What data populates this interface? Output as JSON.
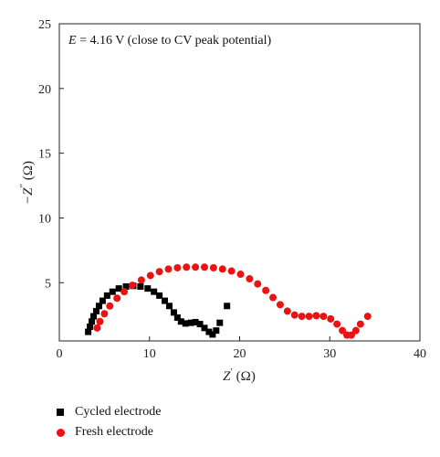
{
  "chart_data": {
    "type": "scatter",
    "annotation": {
      "italic": "E",
      "rest": " = 4.16 V (close to CV peak potential)"
    },
    "xlabel": {
      "main": "Z",
      "sup": "′",
      "unit": " (Ω)"
    },
    "ylabel": {
      "main": "−Z",
      "sup": "″",
      "unit": " (Ω)"
    },
    "xlim": [
      0,
      40
    ],
    "ylim": [
      0.5,
      25
    ],
    "xticks": [
      0,
      10,
      20,
      30,
      40
    ],
    "yticks": [
      5,
      10,
      15,
      20,
      25
    ],
    "grid": false,
    "legend_position": "bottom-left",
    "series": [
      {
        "name": "Cycled electrode",
        "marker": "square",
        "color": "#000000",
        "points": [
          [
            3.2,
            1.2
          ],
          [
            3.4,
            1.6
          ],
          [
            3.6,
            2.0
          ],
          [
            3.8,
            2.4
          ],
          [
            4.1,
            2.8
          ],
          [
            4.4,
            3.2
          ],
          [
            4.8,
            3.6
          ],
          [
            5.3,
            4.0
          ],
          [
            5.9,
            4.3
          ],
          [
            6.6,
            4.55
          ],
          [
            7.4,
            4.7
          ],
          [
            8.2,
            4.75
          ],
          [
            9.0,
            4.7
          ],
          [
            9.8,
            4.55
          ],
          [
            10.5,
            4.3
          ],
          [
            11.1,
            4.0
          ],
          [
            11.7,
            3.6
          ],
          [
            12.2,
            3.2
          ],
          [
            12.7,
            2.7
          ],
          [
            13.1,
            2.3
          ],
          [
            13.5,
            2.0
          ],
          [
            14.0,
            1.85
          ],
          [
            14.6,
            1.9
          ],
          [
            15.1,
            1.95
          ],
          [
            15.6,
            1.8
          ],
          [
            16.1,
            1.5
          ],
          [
            16.6,
            1.2
          ],
          [
            17.0,
            1.0
          ],
          [
            17.4,
            1.3
          ],
          [
            17.8,
            1.9
          ],
          [
            18.6,
            3.2
          ]
        ]
      },
      {
        "name": "Fresh electrode",
        "marker": "circle",
        "color": "#ee1111",
        "points": [
          [
            4.2,
            1.5
          ],
          [
            4.5,
            2.0
          ],
          [
            5.0,
            2.6
          ],
          [
            5.6,
            3.2
          ],
          [
            6.4,
            3.8
          ],
          [
            7.2,
            4.3
          ],
          [
            8.1,
            4.8
          ],
          [
            9.1,
            5.2
          ],
          [
            10.1,
            5.55
          ],
          [
            11.1,
            5.85
          ],
          [
            12.1,
            6.05
          ],
          [
            13.1,
            6.15
          ],
          [
            14.1,
            6.2
          ],
          [
            15.1,
            6.2
          ],
          [
            16.1,
            6.2
          ],
          [
            17.1,
            6.15
          ],
          [
            18.1,
            6.05
          ],
          [
            19.1,
            5.9
          ],
          [
            20.1,
            5.65
          ],
          [
            21.1,
            5.3
          ],
          [
            22.0,
            4.9
          ],
          [
            22.9,
            4.4
          ],
          [
            23.7,
            3.85
          ],
          [
            24.5,
            3.3
          ],
          [
            25.3,
            2.8
          ],
          [
            26.1,
            2.5
          ],
          [
            26.9,
            2.4
          ],
          [
            27.7,
            2.4
          ],
          [
            28.5,
            2.45
          ],
          [
            29.3,
            2.4
          ],
          [
            30.1,
            2.2
          ],
          [
            30.8,
            1.8
          ],
          [
            31.4,
            1.3
          ],
          [
            31.9,
            0.95
          ],
          [
            32.4,
            0.95
          ],
          [
            32.9,
            1.3
          ],
          [
            33.4,
            1.8
          ],
          [
            34.2,
            2.4
          ]
        ]
      }
    ]
  }
}
